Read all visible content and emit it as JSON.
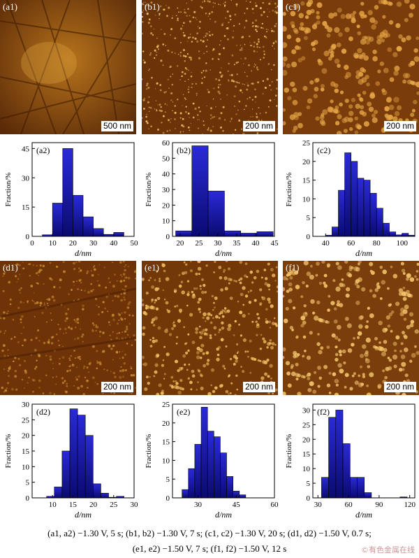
{
  "afm_panels": [
    {
      "id": "a1",
      "label": "(a1)",
      "scale": "500 nm"
    },
    {
      "id": "b1",
      "label": "(b1)",
      "scale": "200 nm"
    },
    {
      "id": "c1",
      "label": "(c1)",
      "scale": "200 nm"
    },
    {
      "id": "d1",
      "label": "(d1)",
      "scale": "200 nm"
    },
    {
      "id": "e1",
      "label": "(e1)",
      "scale": "200 nm"
    },
    {
      "id": "f1",
      "label": "(f1)",
      "scale": "200 nm"
    }
  ],
  "chart_data": [
    {
      "type": "bar",
      "label": "(a2)",
      "xlabel": "d/nm",
      "ylabel": "Fraction/%",
      "xlim": [
        0,
        50
      ],
      "ylim": [
        0,
        48
      ],
      "xticks": [
        0,
        10,
        20,
        30,
        40,
        50
      ],
      "yticks": [
        0,
        15,
        30,
        45
      ],
      "bin_width": 5,
      "x": [
        7.5,
        12.5,
        17.5,
        22.5,
        27.5,
        32.5,
        37.5,
        42.5
      ],
      "values": [
        0.8,
        17,
        45,
        21,
        10,
        4,
        1,
        2
      ]
    },
    {
      "type": "bar",
      "label": "(b2)",
      "xlabel": "d/nm",
      "ylabel": "Fraction/%",
      "xlim": [
        18,
        45
      ],
      "ylim": [
        0,
        60
      ],
      "xticks": [
        20,
        25,
        30,
        35,
        40,
        45
      ],
      "yticks": [
        0,
        10,
        20,
        30,
        40,
        50,
        60
      ],
      "bin_width": 4.3,
      "x": [
        21,
        25.3,
        29.6,
        33.9,
        38.2,
        42.5
      ],
      "values": [
        3.5,
        58,
        29,
        3.5,
        2,
        3
      ]
    },
    {
      "type": "bar",
      "label": "(c2)",
      "xlabel": "d/nm",
      "ylabel": "Fraction/%",
      "xlim": [
        30,
        110
      ],
      "ylim": [
        0,
        25
      ],
      "xticks": [
        40,
        60,
        80,
        100
      ],
      "yticks": [
        0,
        5,
        10,
        15,
        20,
        25
      ],
      "bin_width": 5,
      "x": [
        42.5,
        47.5,
        52.5,
        57.5,
        62.5,
        67.5,
        72.5,
        77.5,
        82.5,
        87.5,
        92.5,
        97.5,
        102.5,
        107.5
      ],
      "values": [
        0.3,
        2.5,
        12.3,
        22.3,
        20,
        15.5,
        15,
        11.5,
        7.5,
        3.5,
        1.2,
        0.4,
        0.8,
        0.3
      ]
    },
    {
      "type": "bar",
      "label": "(d2)",
      "xlabel": "d/nm",
      "ylabel": "Fraction/%",
      "xlim": [
        5,
        30
      ],
      "ylim": [
        0,
        30
      ],
      "xticks": [
        10,
        15,
        20,
        25,
        30
      ],
      "yticks": [
        0,
        5,
        10,
        15,
        20,
        25,
        30
      ],
      "bin_width": 1.9,
      "x": [
        9.5,
        11.4,
        13.3,
        15.2,
        17.1,
        19,
        20.9,
        22.8,
        24.7,
        26.6,
        28.5
      ],
      "values": [
        0.5,
        3.5,
        15,
        28.5,
        26.5,
        20,
        4.5,
        1.5,
        0.2,
        0.5,
        0
      ]
    },
    {
      "type": "bar",
      "label": "(e2)",
      "xlabel": "d/nm",
      "ylabel": "Fraction/%",
      "xlim": [
        20,
        60
      ],
      "ylim": [
        0,
        25
      ],
      "xticks": [
        30,
        45,
        60
      ],
      "yticks": [
        0,
        5,
        10,
        15,
        20,
        25
      ],
      "bin_width": 2.5,
      "x": [
        25,
        27.5,
        30,
        32.5,
        35,
        37.5,
        40,
        42.5,
        45,
        47.5,
        50
      ],
      "values": [
        2.2,
        7.8,
        14.3,
        24.2,
        17.8,
        16.3,
        12,
        5.7,
        1.8,
        0.8,
        0
      ]
    },
    {
      "type": "bar",
      "label": "(f2)",
      "xlabel": "d/nm",
      "ylabel": "Fraction/%",
      "xlim": [
        25,
        125
      ],
      "ylim": [
        0,
        32
      ],
      "xticks": [
        30,
        60,
        90,
        120
      ],
      "yticks": [
        0,
        5,
        10,
        15,
        20,
        25,
        30
      ],
      "bin_width": 7,
      "x": [
        37,
        44,
        51,
        58,
        65,
        72,
        79,
        86,
        93,
        100,
        107,
        114
      ],
      "values": [
        7,
        27.5,
        30,
        18.5,
        7,
        7,
        1.8,
        0,
        0,
        0,
        0,
        0.3
      ]
    }
  ],
  "caption": {
    "line1": "(a1, a2) −1.30 V, 5 s; (b1, b2) −1.30 V, 7 s; (c1, c2) −1.30 V, 20 s; (d1, d2) −1.50 V, 0.7 s;",
    "line2": "(e1, e2) −1.50 V, 7 s; (f1, f2) −1.50 V, 12 s"
  },
  "watermark": "©有色金属在线",
  "colors": {
    "bar_top": "#2a2ad8",
    "bar_bottom": "#0a0a70",
    "afm_dark": "#3a1800",
    "afm_light": "#e8b050"
  }
}
